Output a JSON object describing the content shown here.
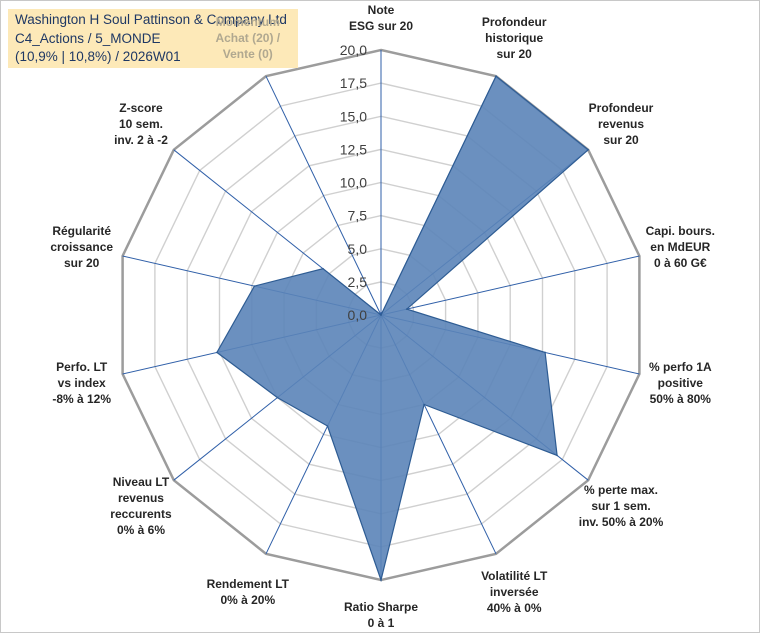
{
  "title_box": {
    "line1": "Washington H Soul Pattinson & Company Ltd",
    "line2": "C4_Actions / 5_MONDE",
    "line3": "(10,9% | 10,8%) / 2026W01"
  },
  "chart_data": {
    "type": "radar",
    "title": "",
    "rlim": [
      0,
      20
    ],
    "ticks": [
      "0,0",
      "2,5",
      "5,0",
      "7,5",
      "10,0",
      "12,5",
      "15,0",
      "17,5",
      "20,0"
    ],
    "grid": true,
    "axes": [
      "Note\nESG sur 20",
      "Profondeur\nhistorique\nsur 20",
      "Profondeur\nrevenus\nsur 20",
      "Capi. bours.\nen MdEUR\n0 à 60 G€",
      "% perfo 1A\npositive\n50% à 80%",
      "% perte max.\nsur 1 sem.\ninv. 50% à 20%",
      "Volatilité LT\ninversée\n40% à 0%",
      "Ratio Sharpe\n0 à 1",
      "Rendement LT\n0% à 20%",
      "Niveau LT\nrevenus\nreccurents\n0% à 6%",
      "Perfo. LT\nvs index\n-8% à 12%",
      "Régularité\ncroissance\nsur 20",
      "Z-score\n10 sem.\ninv. 2 à -2",
      "Momentum\nAchat (20) /\nVente (0)"
    ],
    "series": [
      {
        "values": [
          0,
          20,
          20,
          2,
          12.7,
          17,
          7.5,
          20,
          9.3,
          10,
          12.7,
          9.8,
          5.6,
          0
        ]
      }
    ],
    "colors": {
      "fill": "#5b84b8",
      "stroke": "#2e5c93",
      "spoke": "#2f5fa8",
      "ring": "#d0d0d0",
      "outer": "#9c9c9c"
    }
  }
}
